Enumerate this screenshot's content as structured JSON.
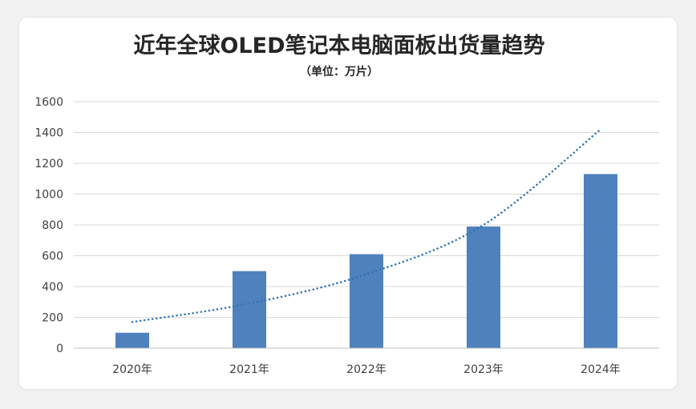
{
  "chart_data": {
    "type": "bar",
    "title": "近年全球OLED笔记本电脑面板出货量趋势",
    "subtitle": "（单位：万片）",
    "categories": [
      "2020年",
      "2021年",
      "2022年",
      "2023年",
      "2024年"
    ],
    "values": [
      100,
      500,
      610,
      790,
      1130
    ],
    "trendline": {
      "type": "exponential",
      "x": [
        "2020年",
        "2021年",
        "2022年",
        "2023年",
        "2024年"
      ],
      "values": [
        170,
        290,
        480,
        800,
        1420
      ]
    },
    "ylim": [
      0,
      1600
    ],
    "yticks": [
      "0",
      "200",
      "400",
      "600",
      "800",
      "1000",
      "1200",
      "1400",
      "1600"
    ],
    "grid": true,
    "legend": "none",
    "colors": {
      "bar": "#4f81bd",
      "trendline": "#2e75b6"
    }
  }
}
